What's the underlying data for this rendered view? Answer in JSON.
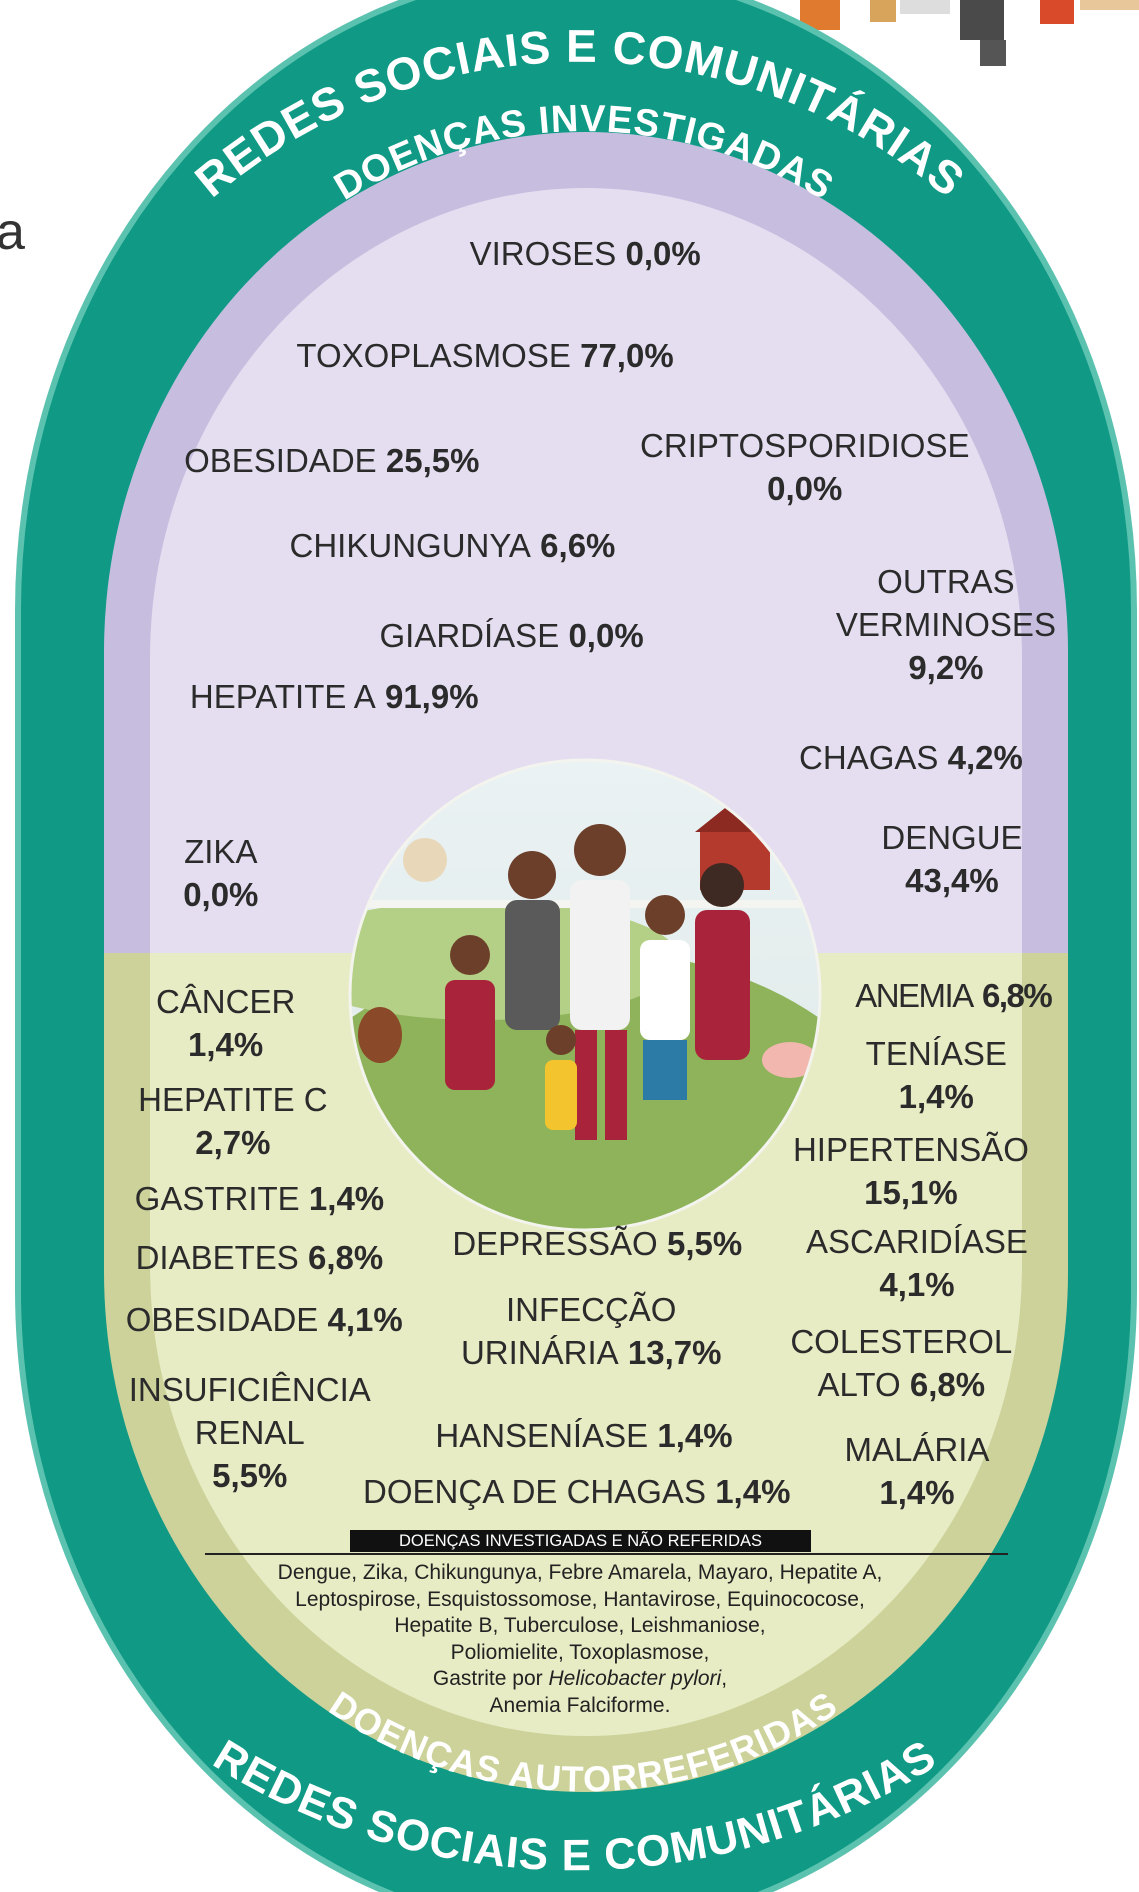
{
  "fragment": "a",
  "arcs": {
    "top_outer": "REDES SOCIAIS E COMUNITÁRIAS",
    "top_inner": "DOENÇAS INVESTIGADAS",
    "bottom_inner": "DOENÇAS AUTORREFERIDAS",
    "bottom_outer": "REDES SOCIAIS E COMUNITÁRIAS"
  },
  "investigated": [
    {
      "name": "VIROSES",
      "value": "0,0%"
    },
    {
      "name": "TOXOPLASMOSE",
      "value": "77,0%"
    },
    {
      "name": "OBESIDADE",
      "value": "25,5%"
    },
    {
      "name": "CRIPTOSPORIDIOSE",
      "value": "0,0%"
    },
    {
      "name": "CHIKUNGUNYA",
      "value": "6,6%"
    },
    {
      "name": "OUTRAS VERMINOSES",
      "value": "9,2%"
    },
    {
      "name": "GIARDÍASE",
      "value": "0,0%"
    },
    {
      "name": "HEPATITE A",
      "value": "91,9%"
    },
    {
      "name": "CHAGAS",
      "value": "4,2%"
    },
    {
      "name": "ZIKA",
      "value": "0,0%"
    },
    {
      "name": "DENGUE",
      "value": "43,4%"
    }
  ],
  "self_reported": [
    {
      "name": "CÂNCER",
      "value": "1,4%"
    },
    {
      "name": "ANEMIA",
      "value": "6,8%"
    },
    {
      "name": "TENÍASE",
      "value": "1,4%"
    },
    {
      "name": "HEPATITE C",
      "value": "2,7%"
    },
    {
      "name": "HIPERTENSÃO",
      "value": "15,1%"
    },
    {
      "name": "GASTRITE",
      "value": "1,4%"
    },
    {
      "name": "DIABETES",
      "value": "6,8%"
    },
    {
      "name": "DEPRESSÃO",
      "value": "5,5%"
    },
    {
      "name": "ASCARIDÍASE",
      "value": "4,1%"
    },
    {
      "name": "OBESIDADE",
      "value": "4,1%"
    },
    {
      "name": "INFECÇÃO URINÁRIA",
      "value": "13,7%"
    },
    {
      "name": "COLESTEROL ALTO",
      "value": "6,8%"
    },
    {
      "name": "INSUFICIÊNCIA RENAL",
      "value": "5,5%"
    },
    {
      "name": "HANSENÍASE",
      "value": "1,4%"
    },
    {
      "name": "MALÁRIA",
      "value": "1,4%"
    },
    {
      "name": "DOENÇA DE CHAGAS",
      "value": "1,4%"
    }
  ],
  "not_reported": {
    "title": "DOENÇAS INVESTIGADAS E NÃO REFERIDAS",
    "lines": [
      "Dengue, Zika, Chikungunya, Febre Amarela, Mayaro, Hepatite A,",
      "Leptospirose, Esquistossomose, Hantavirose, Equinococose,",
      "Hepatite B, Tuberculose, Leishmaniose,",
      "Poliomielite, Toxoplasmose,",
      {
        "text": "Gastrite por ",
        "italic": "Helicobacter pylori",
        "end": ","
      },
      "Anemia Falciforme."
    ]
  }
}
